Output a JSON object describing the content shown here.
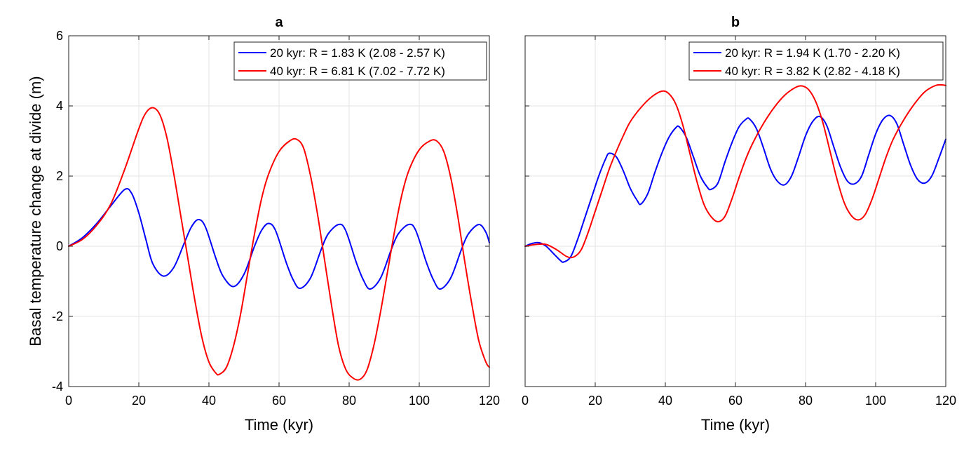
{
  "chart_data": [
    {
      "type": "line",
      "title": "a",
      "xlabel": "Time (kyr)",
      "ylabel": "Basal temperature change at divide (m)",
      "xlim": [
        0,
        120
      ],
      "ylim": [
        -4,
        6
      ],
      "xticks": [
        0,
        20,
        40,
        60,
        80,
        100,
        120
      ],
      "yticks": [
        -4,
        -2,
        0,
        2,
        4,
        6
      ],
      "grid": true,
      "legend_position": "top-right",
      "series": [
        {
          "name": "20 kyr: R = 1.83 K (2.08 - 2.57 K)",
          "color": "#0000ff",
          "points": [
            [
              0,
              0
            ],
            [
              4,
              0.25
            ],
            [
              8,
              0.65
            ],
            [
              12,
              1.15
            ],
            [
              16,
              1.62
            ],
            [
              18,
              1.5
            ],
            [
              20,
              0.95
            ],
            [
              22,
              0.2
            ],
            [
              24,
              -0.5
            ],
            [
              27,
              -0.85
            ],
            [
              30,
              -0.6
            ],
            [
              33,
              0.1
            ],
            [
              35,
              0.55
            ],
            [
              37,
              0.76
            ],
            [
              39,
              0.55
            ],
            [
              42,
              -0.35
            ],
            [
              44,
              -0.85
            ],
            [
              47,
              -1.15
            ],
            [
              50,
              -0.8
            ],
            [
              53,
              0.0
            ],
            [
              55,
              0.45
            ],
            [
              57,
              0.65
            ],
            [
              59,
              0.45
            ],
            [
              62,
              -0.45
            ],
            [
              64,
              -0.95
            ],
            [
              66,
              -1.2
            ],
            [
              69,
              -0.9
            ],
            [
              72,
              -0.1
            ],
            [
              74,
              0.35
            ],
            [
              77,
              0.62
            ],
            [
              79,
              0.45
            ],
            [
              82,
              -0.45
            ],
            [
              84,
              -0.95
            ],
            [
              86,
              -1.22
            ],
            [
              89,
              -0.9
            ],
            [
              92,
              -0.1
            ],
            [
              94,
              0.35
            ],
            [
              97,
              0.62
            ],
            [
              99,
              0.45
            ],
            [
              102,
              -0.45
            ],
            [
              104,
              -0.95
            ],
            [
              106,
              -1.22
            ],
            [
              109,
              -0.9
            ],
            [
              112,
              -0.1
            ],
            [
              114,
              0.35
            ],
            [
              117,
              0.62
            ],
            [
              119,
              0.4
            ],
            [
              120,
              0.1
            ]
          ]
        },
        {
          "name": "40 kyr: R = 6.81 K (7.02 - 7.72 K)",
          "color": "#ff0000",
          "points": [
            [
              0,
              0
            ],
            [
              4,
              0.2
            ],
            [
              8,
              0.6
            ],
            [
              12,
              1.2
            ],
            [
              16,
              2.2
            ],
            [
              20,
              3.35
            ],
            [
              22,
              3.8
            ],
            [
              24,
              3.95
            ],
            [
              26,
              3.75
            ],
            [
              28,
              3.1
            ],
            [
              30,
              2.05
            ],
            [
              32,
              0.85
            ],
            [
              34,
              -0.35
            ],
            [
              36,
              -1.55
            ],
            [
              38,
              -2.6
            ],
            [
              40,
              -3.3
            ],
            [
              42,
              -3.62
            ],
            [
              43,
              -3.65
            ],
            [
              45,
              -3.45
            ],
            [
              47,
              -2.85
            ],
            [
              49,
              -1.95
            ],
            [
              51,
              -0.8
            ],
            [
              53,
              0.35
            ],
            [
              55,
              1.35
            ],
            [
              57,
              2.05
            ],
            [
              60,
              2.7
            ],
            [
              63,
              3.0
            ],
            [
              65,
              3.05
            ],
            [
              67,
              2.8
            ],
            [
              69,
              2.0
            ],
            [
              71,
              0.9
            ],
            [
              73,
              -0.4
            ],
            [
              75,
              -1.7
            ],
            [
              77,
              -2.85
            ],
            [
              79,
              -3.5
            ],
            [
              81,
              -3.75
            ],
            [
              83,
              -3.8
            ],
            [
              85,
              -3.55
            ],
            [
              87,
              -2.85
            ],
            [
              89,
              -1.85
            ],
            [
              91,
              -0.7
            ],
            [
              93,
              0.45
            ],
            [
              95,
              1.45
            ],
            [
              97,
              2.15
            ],
            [
              100,
              2.75
            ],
            [
              103,
              3.0
            ],
            [
              105,
              3.0
            ],
            [
              107,
              2.7
            ],
            [
              109,
              1.95
            ],
            [
              111,
              0.85
            ],
            [
              113,
              -0.45
            ],
            [
              115,
              -1.65
            ],
            [
              117,
              -2.7
            ],
            [
              119,
              -3.3
            ],
            [
              120,
              -3.45
            ]
          ]
        }
      ]
    },
    {
      "type": "line",
      "title": "b",
      "xlabel": "Time (kyr)",
      "ylabel": "",
      "xlim": [
        0,
        120
      ],
      "ylim": [
        -4,
        6
      ],
      "xticks": [
        0,
        20,
        40,
        60,
        80,
        100,
        120
      ],
      "yticks": [
        -4,
        -2,
        0,
        2,
        4,
        6
      ],
      "grid": true,
      "legend_position": "top-right",
      "series": [
        {
          "name": "20 kyr: R = 1.94 K (1.70 - 2.20 K)",
          "color": "#0000ff",
          "points": [
            [
              0,
              0
            ],
            [
              2,
              0.08
            ],
            [
              4,
              0.1
            ],
            [
              6,
              0.0
            ],
            [
              8,
              -0.2
            ],
            [
              10,
              -0.4
            ],
            [
              11,
              -0.45
            ],
            [
              13,
              -0.3
            ],
            [
              15,
              0.2
            ],
            [
              17,
              0.8
            ],
            [
              19,
              1.4
            ],
            [
              21,
              2.0
            ],
            [
              23,
              2.5
            ],
            [
              24,
              2.65
            ],
            [
              26,
              2.55
            ],
            [
              28,
              2.15
            ],
            [
              30,
              1.65
            ],
            [
              32,
              1.3
            ],
            [
              33,
              1.2
            ],
            [
              35,
              1.5
            ],
            [
              37,
              2.1
            ],
            [
              39,
              2.65
            ],
            [
              41,
              3.1
            ],
            [
              43,
              3.38
            ],
            [
              44,
              3.4
            ],
            [
              46,
              3.1
            ],
            [
              48,
              2.55
            ],
            [
              50,
              2.0
            ],
            [
              52,
              1.68
            ],
            [
              53,
              1.62
            ],
            [
              55,
              1.8
            ],
            [
              57,
              2.4
            ],
            [
              59,
              2.95
            ],
            [
              61,
              3.4
            ],
            [
              63,
              3.62
            ],
            [
              64,
              3.63
            ],
            [
              66,
              3.35
            ],
            [
              68,
              2.8
            ],
            [
              70,
              2.2
            ],
            [
              72,
              1.85
            ],
            [
              74,
              1.75
            ],
            [
              76,
              2.0
            ],
            [
              78,
              2.55
            ],
            [
              80,
              3.15
            ],
            [
              82,
              3.55
            ],
            [
              84,
              3.7
            ],
            [
              86,
              3.45
            ],
            [
              88,
              2.85
            ],
            [
              90,
              2.25
            ],
            [
              92,
              1.85
            ],
            [
              94,
              1.78
            ],
            [
              96,
              2.0
            ],
            [
              98,
              2.6
            ],
            [
              100,
              3.2
            ],
            [
              102,
              3.6
            ],
            [
              104,
              3.73
            ],
            [
              106,
              3.5
            ],
            [
              108,
              2.9
            ],
            [
              110,
              2.3
            ],
            [
              112,
              1.9
            ],
            [
              114,
              1.8
            ],
            [
              116,
              2.0
            ],
            [
              118,
              2.5
            ],
            [
              120,
              3.05
            ]
          ]
        },
        {
          "name": "40 kyr: R = 3.82 K (2.82 - 4.18 K)",
          "color": "#ff0000",
          "points": [
            [
              0,
              0
            ],
            [
              3,
              0.05
            ],
            [
              6,
              0.05
            ],
            [
              9,
              -0.1
            ],
            [
              12,
              -0.3
            ],
            [
              14,
              -0.3
            ],
            [
              16,
              -0.1
            ],
            [
              18,
              0.4
            ],
            [
              20,
              1.0
            ],
            [
              22,
              1.6
            ],
            [
              24,
              2.2
            ],
            [
              26,
              2.7
            ],
            [
              28,
              3.15
            ],
            [
              30,
              3.55
            ],
            [
              33,
              3.95
            ],
            [
              36,
              4.25
            ],
            [
              39,
              4.42
            ],
            [
              41,
              4.35
            ],
            [
              43,
              4.05
            ],
            [
              45,
              3.45
            ],
            [
              47,
              2.65
            ],
            [
              49,
              1.85
            ],
            [
              51,
              1.2
            ],
            [
              53,
              0.85
            ],
            [
              55,
              0.7
            ],
            [
              57,
              0.85
            ],
            [
              59,
              1.35
            ],
            [
              61,
              1.95
            ],
            [
              63,
              2.5
            ],
            [
              65,
              2.95
            ],
            [
              68,
              3.5
            ],
            [
              71,
              3.95
            ],
            [
              74,
              4.3
            ],
            [
              77,
              4.52
            ],
            [
              79,
              4.57
            ],
            [
              81,
              4.45
            ],
            [
              83,
              4.1
            ],
            [
              85,
              3.5
            ],
            [
              87,
              2.7
            ],
            [
              89,
              1.9
            ],
            [
              91,
              1.25
            ],
            [
              93,
              0.88
            ],
            [
              95,
              0.75
            ],
            [
              97,
              0.9
            ],
            [
              99,
              1.35
            ],
            [
              101,
              1.95
            ],
            [
              103,
              2.55
            ],
            [
              105,
              3.05
            ],
            [
              108,
              3.6
            ],
            [
              111,
              4.05
            ],
            [
              114,
              4.4
            ],
            [
              117,
              4.58
            ],
            [
              119,
              4.6
            ],
            [
              120,
              4.58
            ]
          ]
        }
      ]
    }
  ]
}
